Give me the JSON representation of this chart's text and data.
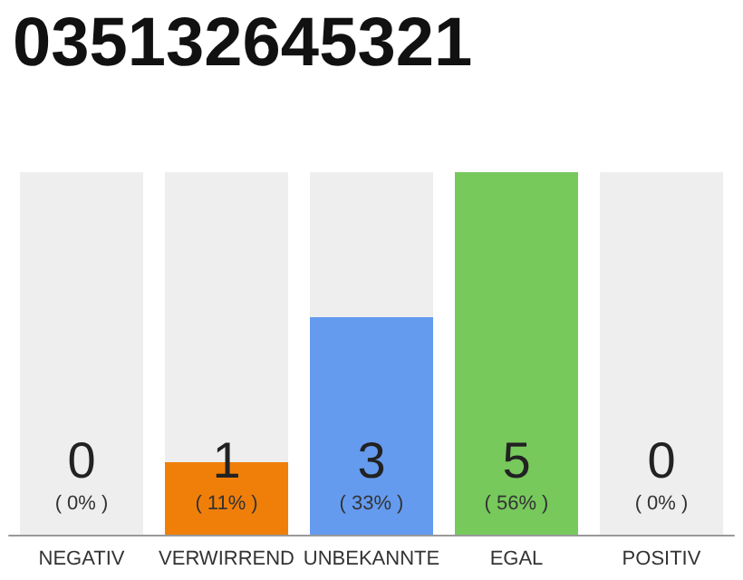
{
  "chart_data": {
    "type": "bar",
    "title": "035132645321",
    "categories": [
      "NEGATIV",
      "VERWIRREND",
      "UNBEKANNTE",
      "EGAL",
      "POSITIV"
    ],
    "values": [
      0,
      1,
      3,
      5,
      0
    ],
    "colors": [
      "#b0b0b0",
      "#f07f09",
      "#649bef",
      "#77c95c",
      "#b0b0b0"
    ],
    "value_labels": [
      "0\n( 0% )",
      "1\n( 11% )",
      "3\n( 33% )",
      "5\n( 56% )",
      "0\n( 0% )"
    ],
    "ylim": [
      0,
      5
    ]
  }
}
